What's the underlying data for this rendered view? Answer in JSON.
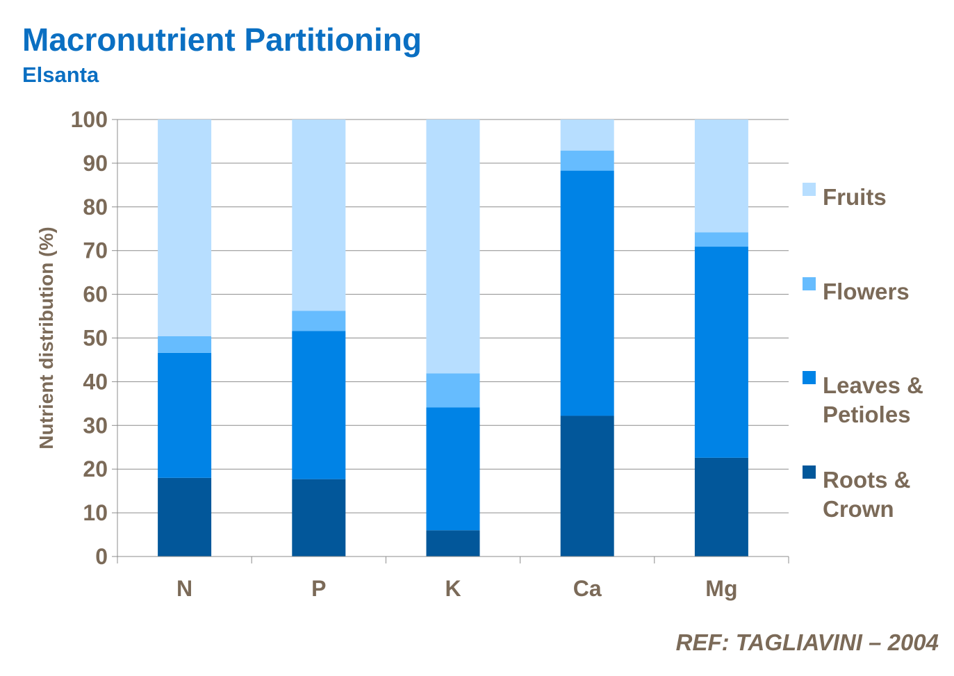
{
  "header": {
    "title": "Macronutrient Partitioning",
    "subtitle": "Elsanta"
  },
  "footer": {
    "reference": "REF: TAGLIAVINI – 2004"
  },
  "chart_data": {
    "type": "bar",
    "stacked": true,
    "title": "Macronutrient Partitioning",
    "subtitle": "Elsanta",
    "xlabel": "",
    "ylabel": "Nutrient distribution (%)",
    "ylim": [
      0,
      100
    ],
    "yticks": [
      0,
      10,
      20,
      30,
      40,
      50,
      60,
      70,
      80,
      90,
      100
    ],
    "grid": true,
    "legend_position": "right",
    "categories": [
      "N",
      "P",
      "K",
      "Ca",
      "Mg"
    ],
    "series": [
      {
        "name": "Roots & Crown",
        "legend_lines": [
          "Roots &",
          "Crown"
        ],
        "color": "#02579a",
        "values": [
          18,
          17.7,
          6,
          32.2,
          22.6
        ]
      },
      {
        "name": "Leaves & Petioles",
        "legend_lines": [
          "Leaves &",
          "Petioles"
        ],
        "color": "#0083e6",
        "values": [
          28.6,
          33.9,
          28.1,
          56.1,
          48.3
        ]
      },
      {
        "name": "Flowers",
        "legend_lines": [
          "Flowers"
        ],
        "color": "#66bcfe",
        "values": [
          3.8,
          4.6,
          7.8,
          4.6,
          3.3
        ]
      },
      {
        "name": "Fruits",
        "legend_lines": [
          "Fruits"
        ],
        "color": "#b7deff",
        "values": [
          49.6,
          43.8,
          58.1,
          7.1,
          25.8
        ]
      }
    ],
    "colors": {
      "grid": "#8c8c8c",
      "axis": "#8c8c8c",
      "text": "#7b6a58",
      "title": "#0a6fc2"
    }
  }
}
